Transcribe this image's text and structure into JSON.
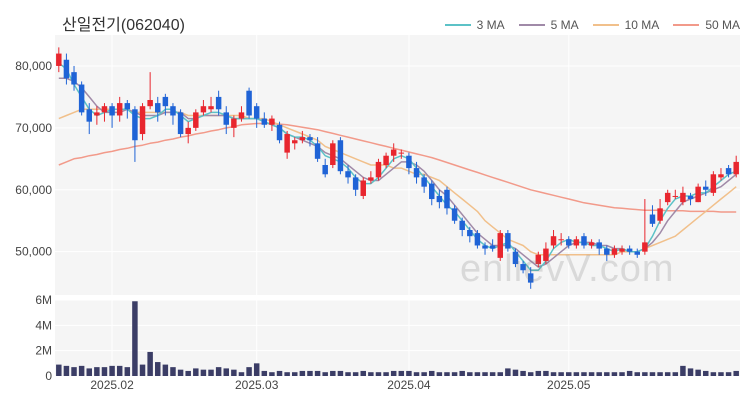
{
  "title": "산일전기(062040)",
  "watermark": "enlievV.com",
  "colors": {
    "up": "#e8262e",
    "down": "#1f63d6",
    "volume": "#3b3d66",
    "ma3": "#5cc2c7",
    "ma5": "#a08aa8",
    "ma10": "#f1c08b",
    "ma50": "#f29a8a",
    "plotBg": "#f5f5f5",
    "grid": "#ffffff"
  },
  "legend": [
    {
      "label": "3 MA",
      "color": "#5cc2c7"
    },
    {
      "label": "5 MA",
      "color": "#a08aa8"
    },
    {
      "label": "10 MA",
      "color": "#f1c08b"
    },
    {
      "label": "50 MA",
      "color": "#f29a8a"
    }
  ],
  "chart_data": [
    {
      "type": "candlestick",
      "title": "산일전기(062040)",
      "ylim": [
        43000,
        85000
      ],
      "yticks": [
        50000,
        60000,
        70000,
        80000
      ],
      "ytick_labels": [
        "50,000",
        "60,000",
        "70,000",
        "80,000"
      ],
      "grid": true,
      "legend_position": "top-right",
      "x_labels": [
        {
          "index": 7,
          "label": "2025.02"
        },
        {
          "index": 26,
          "label": "2025.03"
        },
        {
          "index": 46,
          "label": "2025.04"
        },
        {
          "index": 67,
          "label": "2025.05"
        }
      ],
      "candles": [
        [
          80000,
          82000,
          83000,
          79000
        ],
        [
          81000,
          78000,
          82000,
          77000
        ],
        [
          79000,
          77000,
          80000,
          76000
        ],
        [
          77000,
          72500,
          77500,
          72000
        ],
        [
          73000,
          71000,
          74000,
          69000
        ],
        [
          72000,
          72500,
          73500,
          70500
        ],
        [
          72500,
          73500,
          74000,
          71000
        ],
        [
          73500,
          72000,
          74000,
          70000
        ],
        [
          72000,
          74000,
          75000,
          71000
        ],
        [
          74000,
          73000,
          74500,
          71500
        ],
        [
          73000,
          68000,
          73500,
          64500
        ],
        [
          69000,
          73500,
          74000,
          68000
        ],
        [
          73500,
          74500,
          79000,
          73000
        ],
        [
          74000,
          72500,
          75000,
          71000
        ],
        [
          75000,
          73500,
          75500,
          72000
        ],
        [
          73500,
          72000,
          74000,
          70500
        ],
        [
          72500,
          69000,
          73000,
          68500
        ],
        [
          69000,
          70000,
          71000,
          67500
        ],
        [
          70000,
          72500,
          73000,
          69500
        ],
        [
          72500,
          73500,
          74500,
          72000
        ],
        [
          73000,
          73500,
          75000,
          72500
        ],
        [
          75000,
          73000,
          76000,
          72000
        ],
        [
          72500,
          70500,
          73500,
          69000
        ],
        [
          70000,
          71500,
          72000,
          68500
        ],
        [
          71500,
          72500,
          73500,
          71000
        ],
        [
          76000,
          72000,
          76500,
          71500
        ],
        [
          73500,
          71500,
          74000,
          70000
        ],
        [
          71500,
          70500,
          72500,
          70000
        ],
        [
          70500,
          71500,
          72000,
          69500
        ],
        [
          70500,
          68000,
          71000,
          67500
        ],
        [
          66000,
          69000,
          69500,
          65000
        ],
        [
          67500,
          68000,
          68500,
          66500
        ],
        [
          68000,
          68500,
          69500,
          67500
        ],
        [
          68500,
          68000,
          69000,
          67000
        ],
        [
          67500,
          65000,
          68500,
          64500
        ],
        [
          64000,
          62500,
          65000,
          62000
        ],
        [
          64000,
          67500,
          68000,
          63500
        ],
        [
          68000,
          63000,
          68500,
          62500
        ],
        [
          63000,
          62000,
          64000,
          61000
        ],
        [
          62000,
          60000,
          62500,
          59000
        ],
        [
          59000,
          61500,
          62000,
          58500
        ],
        [
          61500,
          62000,
          63000,
          61000
        ],
        [
          62000,
          64500,
          65000,
          61500
        ],
        [
          64000,
          65500,
          66000,
          63500
        ],
        [
          65500,
          66500,
          67500,
          64500
        ],
        [
          66000,
          66000,
          66500,
          65000
        ],
        [
          65500,
          63500,
          66000,
          62500
        ],
        [
          63500,
          62000,
          64500,
          61000
        ],
        [
          62000,
          60500,
          62500,
          59500
        ],
        [
          61000,
          58500,
          61500,
          57500
        ],
        [
          59000,
          58000,
          60000,
          57000
        ],
        [
          60000,
          57000,
          60500,
          56000
        ],
        [
          57000,
          55000,
          57500,
          54500
        ],
        [
          55000,
          53500,
          55500,
          52500
        ],
        [
          53500,
          52500,
          54000,
          51500
        ],
        [
          53000,
          51000,
          53500,
          50500
        ],
        [
          51000,
          50500,
          51500,
          49500
        ],
        [
          51000,
          50500,
          52000,
          50000
        ],
        [
          49000,
          53000,
          53500,
          48500
        ],
        [
          53000,
          50500,
          53500,
          50000
        ],
        [
          50000,
          48000,
          50500,
          47500
        ],
        [
          48000,
          47000,
          48500,
          46500
        ],
        [
          46500,
          45000,
          47500,
          44000
        ],
        [
          48000,
          49500,
          50000,
          47500
        ],
        [
          48500,
          50500,
          51500,
          48000
        ],
        [
          51000,
          52500,
          53500,
          50500
        ],
        [
          52000,
          52000,
          53000,
          51000
        ],
        [
          52000,
          51000,
          52500,
          50500
        ],
        [
          51000,
          52000,
          52500,
          50500
        ],
        [
          52500,
          51000,
          53000,
          50500
        ],
        [
          51000,
          51500,
          52000,
          50500
        ],
        [
          51500,
          50500,
          52000,
          49500
        ],
        [
          50500,
          49500,
          51000,
          48500
        ],
        [
          49500,
          50500,
          51000,
          49000
        ],
        [
          50000,
          50500,
          51000,
          49500
        ],
        [
          50500,
          50000,
          51000,
          49500
        ],
        [
          50000,
          49500,
          50500,
          49000
        ],
        [
          50000,
          51500,
          58500,
          49500
        ],
        [
          56000,
          54500,
          57500,
          54000
        ],
        [
          55000,
          57000,
          58500,
          54500
        ],
        [
          58000,
          59500,
          60000,
          57500
        ],
        [
          59000,
          59000,
          60000,
          58500
        ],
        [
          58000,
          59500,
          60500,
          57500
        ],
        [
          59000,
          58500,
          59500,
          57500
        ],
        [
          58000,
          60500,
          61000,
          58000
        ],
        [
          60500,
          60000,
          61500,
          59000
        ],
        [
          59500,
          62500,
          63000,
          59000
        ],
        [
          62000,
          62500,
          63500,
          61500
        ],
        [
          63500,
          62500,
          64000,
          62000
        ],
        [
          62500,
          64500,
          65500,
          62000
        ]
      ],
      "ma": {
        "ma3": [
          80500,
          79500,
          77000,
          75000,
          73000,
          72000,
          72500,
          73000,
          73000,
          73000,
          72000,
          71500,
          71500,
          72000,
          73000,
          73000,
          72000,
          71000,
          71500,
          72000,
          72500,
          72500,
          72000,
          71500,
          71500,
          71500,
          71500,
          71000,
          70500,
          70000,
          69000,
          68500,
          68500,
          68000,
          67000,
          65500,
          65000,
          64500,
          63500,
          62000,
          61000,
          61000,
          62000,
          63500,
          65000,
          65500,
          65000,
          63500,
          62000,
          60500,
          59000,
          57500,
          56500,
          55000,
          53500,
          52000,
          51000,
          50500,
          51000,
          51500,
          50000,
          48500,
          47000,
          47000,
          48500,
          50500,
          51500,
          52000,
          51500,
          51500,
          51000,
          51000,
          50500,
          50000,
          50500,
          50000,
          50000,
          50500,
          52500,
          55000,
          57000,
          58500,
          59000,
          59000,
          59500,
          59500,
          60500,
          61500,
          62500,
          63000
        ],
        "ma5": [
          78000,
          78000,
          77500,
          76500,
          75000,
          73500,
          72500,
          72500,
          72500,
          73000,
          72500,
          72000,
          72000,
          72000,
          72500,
          72500,
          72500,
          71500,
          71500,
          72000,
          72000,
          72000,
          72000,
          71500,
          71500,
          71500,
          71500,
          71000,
          70500,
          70000,
          69000,
          68500,
          68000,
          67500,
          67000,
          66000,
          65500,
          65000,
          64000,
          63000,
          62000,
          61500,
          61500,
          62500,
          63500,
          64500,
          64500,
          64000,
          63000,
          61500,
          60000,
          59000,
          57500,
          56000,
          54500,
          53000,
          52000,
          51000,
          51000,
          51000,
          50500,
          49500,
          48500,
          47500,
          48000,
          49000,
          50000,
          51000,
          51500,
          51500,
          51500,
          51000,
          51000,
          50500,
          50500,
          50000,
          50000,
          50500,
          51500,
          53000,
          55000,
          56500,
          58000,
          58500,
          59000,
          59500,
          60000,
          60500,
          61500,
          62500
        ],
        "ma10": [
          71500,
          72000,
          72500,
          73000,
          73000,
          73000,
          73000,
          73000,
          73000,
          73000,
          72500,
          72500,
          72500,
          72500,
          72500,
          72500,
          72500,
          72000,
          72000,
          72000,
          72000,
          72000,
          72000,
          72000,
          72000,
          71500,
          71500,
          71500,
          71000,
          70500,
          70000,
          69500,
          69000,
          68500,
          68000,
          67000,
          66500,
          66000,
          65500,
          65000,
          64500,
          64000,
          64000,
          64000,
          63500,
          63500,
          63000,
          62500,
          62500,
          62000,
          61500,
          60500,
          59500,
          58500,
          57500,
          56500,
          55000,
          54000,
          53000,
          52000,
          51500,
          51000,
          50000,
          49500,
          49500,
          49500,
          49500,
          49500,
          49500,
          49500,
          49500,
          49500,
          49500,
          49500,
          50000,
          50000,
          50000,
          50500,
          51000,
          51500,
          52000,
          52500,
          53500,
          54500,
          55500,
          56500,
          57500,
          58500,
          59500,
          60500
        ],
        "ma50": [
          64000,
          64500,
          65000,
          65200,
          65500,
          65700,
          66000,
          66200,
          66500,
          66700,
          67000,
          67200,
          67500,
          67700,
          68000,
          68200,
          68500,
          68700,
          69000,
          69200,
          69500,
          69700,
          70000,
          70200,
          70500,
          70600,
          70700,
          70700,
          70700,
          70600,
          70500,
          70300,
          70100,
          69900,
          69700,
          69400,
          69100,
          68800,
          68500,
          68200,
          67900,
          67600,
          67300,
          67000,
          66700,
          66400,
          66100,
          65800,
          65500,
          65200,
          64800,
          64400,
          64000,
          63600,
          63200,
          62800,
          62400,
          62000,
          61600,
          61200,
          60800,
          60400,
          60000,
          59700,
          59400,
          59100,
          58800,
          58500,
          58200,
          57900,
          57700,
          57500,
          57300,
          57100,
          57000,
          56900,
          56800,
          56700,
          56700,
          56700,
          56600,
          56600,
          56600,
          56500,
          56500,
          56500,
          56500,
          56400,
          56400,
          56400
        ]
      }
    },
    {
      "type": "bar",
      "title": "",
      "ylim": [
        0,
        6000000
      ],
      "yticks": [
        0,
        2000000,
        4000000,
        6000000
      ],
      "ytick_labels": [
        "0",
        "2M",
        "4M",
        "6M"
      ],
      "values": [
        900000,
        800000,
        700000,
        800000,
        600000,
        700000,
        700000,
        800000,
        800000,
        700000,
        5900000,
        900000,
        1900000,
        1100000,
        900000,
        700000,
        500000,
        400000,
        600000,
        500000,
        500000,
        700000,
        600000,
        500000,
        300000,
        700000,
        1000000,
        400000,
        300000,
        400000,
        300000,
        300000,
        400000,
        400000,
        400000,
        300000,
        400000,
        400000,
        300000,
        300000,
        400000,
        300000,
        300000,
        300000,
        400000,
        400000,
        400000,
        300000,
        300000,
        400000,
        300000,
        300000,
        300000,
        400000,
        300000,
        300000,
        300000,
        300000,
        300000,
        600000,
        500000,
        400000,
        300000,
        400000,
        400000,
        300000,
        300000,
        300000,
        300000,
        300000,
        300000,
        300000,
        300000,
        300000,
        300000,
        400000,
        300000,
        300000,
        300000,
        300000,
        300000,
        300000,
        800000,
        600000,
        500000,
        400000,
        300000,
        300000,
        300000,
        400000
      ]
    }
  ]
}
